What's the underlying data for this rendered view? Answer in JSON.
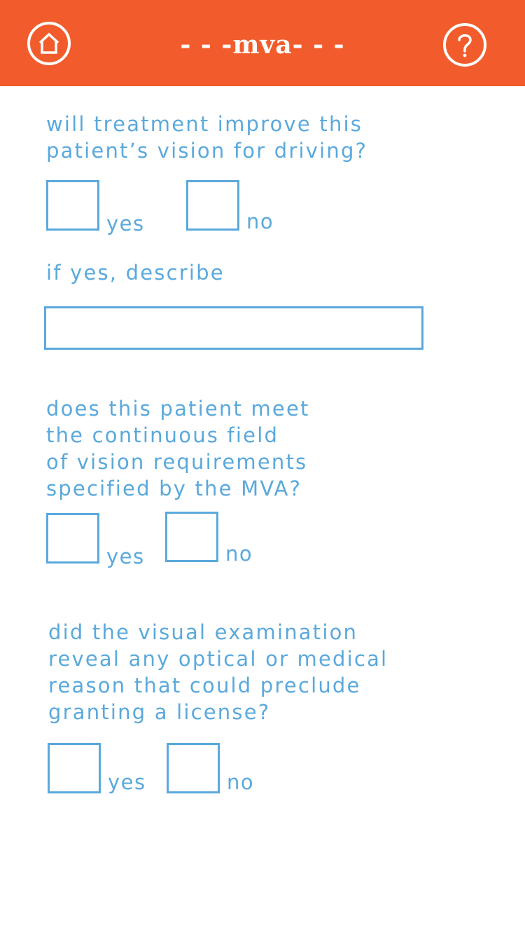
{
  "header": {
    "title": "- - -mva- - -"
  },
  "questions": [
    {
      "text": "will treatment improve this\npatient’s vision for driving?",
      "yes_label": "yes",
      "no_label": "no"
    },
    {
      "text": "does this patient meet\nthe continuous field\nof vision requirements\nspecified by the MVA?",
      "yes_label": "yes",
      "no_label": "no"
    },
    {
      "text": "did the visual examination\nreveal any optical or medical\nreason that could preclude\ngranting a license?",
      "yes_label": "yes",
      "no_label": "no"
    }
  ],
  "describe": {
    "label": "if yes, describe",
    "value": ""
  },
  "colors": {
    "header_bg": "#f25c2c",
    "accent": "#5aa9dc",
    "background": "#ffffff"
  },
  "icons": {
    "home": "home-icon",
    "help": "help-icon"
  }
}
